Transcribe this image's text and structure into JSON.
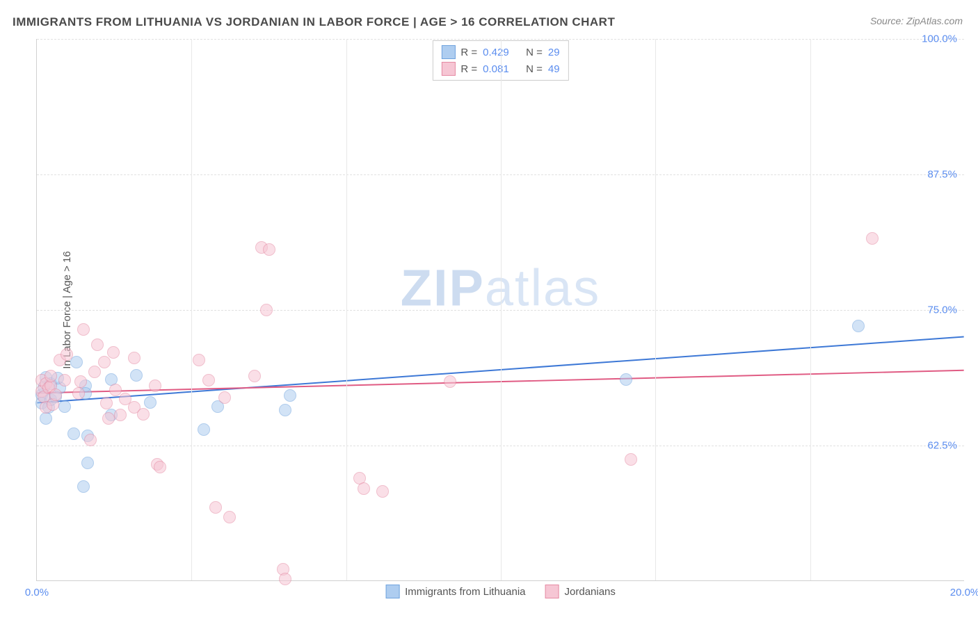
{
  "title": "IMMIGRANTS FROM LITHUANIA VS JORDANIAN IN LABOR FORCE | AGE > 16 CORRELATION CHART",
  "source": "Source: ZipAtlas.com",
  "ylabel": "In Labor Force | Age > 16",
  "watermark_a": "ZIP",
  "watermark_b": "atlas",
  "chart": {
    "type": "scatter",
    "xlim": [
      0,
      20
    ],
    "ylim": [
      50,
      100
    ],
    "xtick_labels": [
      "0.0%",
      "20.0%"
    ],
    "xtick_positions": [
      0,
      20
    ],
    "xminor_positions": [
      3.33,
      6.67,
      10,
      13.33,
      16.67
    ],
    "ytick_labels": [
      "62.5%",
      "75.0%",
      "87.5%",
      "100.0%"
    ],
    "ytick_positions": [
      62.5,
      75,
      87.5,
      100
    ],
    "grid_color": "#e0e0e0",
    "background": "#ffffff",
    "marker_radius": 9,
    "series": [
      {
        "name": "Immigrants from Lithuania",
        "fill": "#aecdf0",
        "stroke": "#6fa3de",
        "fill_opacity": 0.55,
        "stroke_opacity": 0.9,
        "r": "0.429",
        "n": "29",
        "trend": {
          "y_at_x0": 66.4,
          "y_at_x20": 72.5,
          "stroke": "#3d78d6",
          "width": 2
        },
        "points": [
          [
            0.1,
            67.2
          ],
          [
            0.1,
            66.4
          ],
          [
            0.15,
            67.9
          ],
          [
            0.2,
            68.8
          ],
          [
            0.25,
            66.0
          ],
          [
            0.3,
            68.2
          ],
          [
            0.3,
            66.7
          ],
          [
            0.8,
            63.6
          ],
          [
            0.85,
            70.2
          ],
          [
            1.05,
            68.0
          ],
          [
            1.05,
            67.3
          ],
          [
            1.1,
            63.4
          ],
          [
            1.6,
            65.3
          ],
          [
            1.6,
            68.6
          ],
          [
            2.15,
            69.0
          ],
          [
            2.45,
            66.5
          ],
          [
            3.6,
            64.0
          ],
          [
            3.9,
            66.1
          ],
          [
            5.35,
            65.8
          ],
          [
            5.45,
            67.1
          ],
          [
            12.7,
            68.6
          ],
          [
            17.7,
            73.5
          ],
          [
            1.0,
            58.7
          ],
          [
            1.1,
            60.9
          ],
          [
            0.5,
            67.8
          ],
          [
            0.6,
            66.1
          ],
          [
            0.4,
            67.0
          ],
          [
            0.2,
            65.0
          ],
          [
            0.45,
            68.7
          ]
        ]
      },
      {
        "name": "Jordanians",
        "fill": "#f6c6d4",
        "stroke": "#e58aa3",
        "fill_opacity": 0.55,
        "stroke_opacity": 0.9,
        "r": "0.081",
        "n": "49",
        "trend": {
          "y_at_x0": 67.3,
          "y_at_x20": 69.4,
          "stroke": "#e05b83",
          "width": 2
        },
        "points": [
          [
            0.1,
            67.5
          ],
          [
            0.1,
            68.5
          ],
          [
            0.15,
            67.0
          ],
          [
            0.2,
            68.2
          ],
          [
            0.2,
            66.0
          ],
          [
            0.25,
            67.8
          ],
          [
            0.3,
            68.0
          ],
          [
            0.3,
            68.9
          ],
          [
            0.35,
            66.3
          ],
          [
            0.4,
            67.2
          ],
          [
            0.5,
            70.4
          ],
          [
            0.6,
            68.5
          ],
          [
            0.65,
            70.9
          ],
          [
            0.9,
            67.3
          ],
          [
            0.95,
            68.4
          ],
          [
            1.0,
            73.2
          ],
          [
            1.25,
            69.3
          ],
          [
            1.3,
            71.8
          ],
          [
            1.45,
            70.2
          ],
          [
            1.5,
            66.4
          ],
          [
            1.55,
            65.0
          ],
          [
            1.65,
            71.1
          ],
          [
            1.7,
            67.6
          ],
          [
            1.8,
            65.3
          ],
          [
            1.9,
            66.8
          ],
          [
            2.1,
            70.6
          ],
          [
            2.1,
            66.0
          ],
          [
            2.3,
            65.4
          ],
          [
            2.55,
            68.0
          ],
          [
            2.6,
            60.8
          ],
          [
            2.65,
            60.5
          ],
          [
            3.5,
            70.4
          ],
          [
            3.7,
            68.5
          ],
          [
            3.85,
            56.8
          ],
          [
            4.05,
            66.9
          ],
          [
            4.15,
            55.9
          ],
          [
            4.7,
            68.9
          ],
          [
            4.85,
            80.8
          ],
          [
            4.95,
            75.0
          ],
          [
            5.0,
            80.6
          ],
          [
            5.3,
            51.1
          ],
          [
            5.35,
            50.2
          ],
          [
            6.95,
            59.5
          ],
          [
            7.05,
            58.5
          ],
          [
            7.45,
            58.3
          ],
          [
            8.9,
            68.4
          ],
          [
            12.8,
            61.2
          ],
          [
            18.0,
            81.6
          ],
          [
            1.15,
            63.0
          ]
        ]
      }
    ]
  },
  "legend_top": {
    "r_label": "R =",
    "n_label": "N ="
  },
  "legend_bottom": [
    "Immigrants from Lithuania",
    "Jordanians"
  ]
}
